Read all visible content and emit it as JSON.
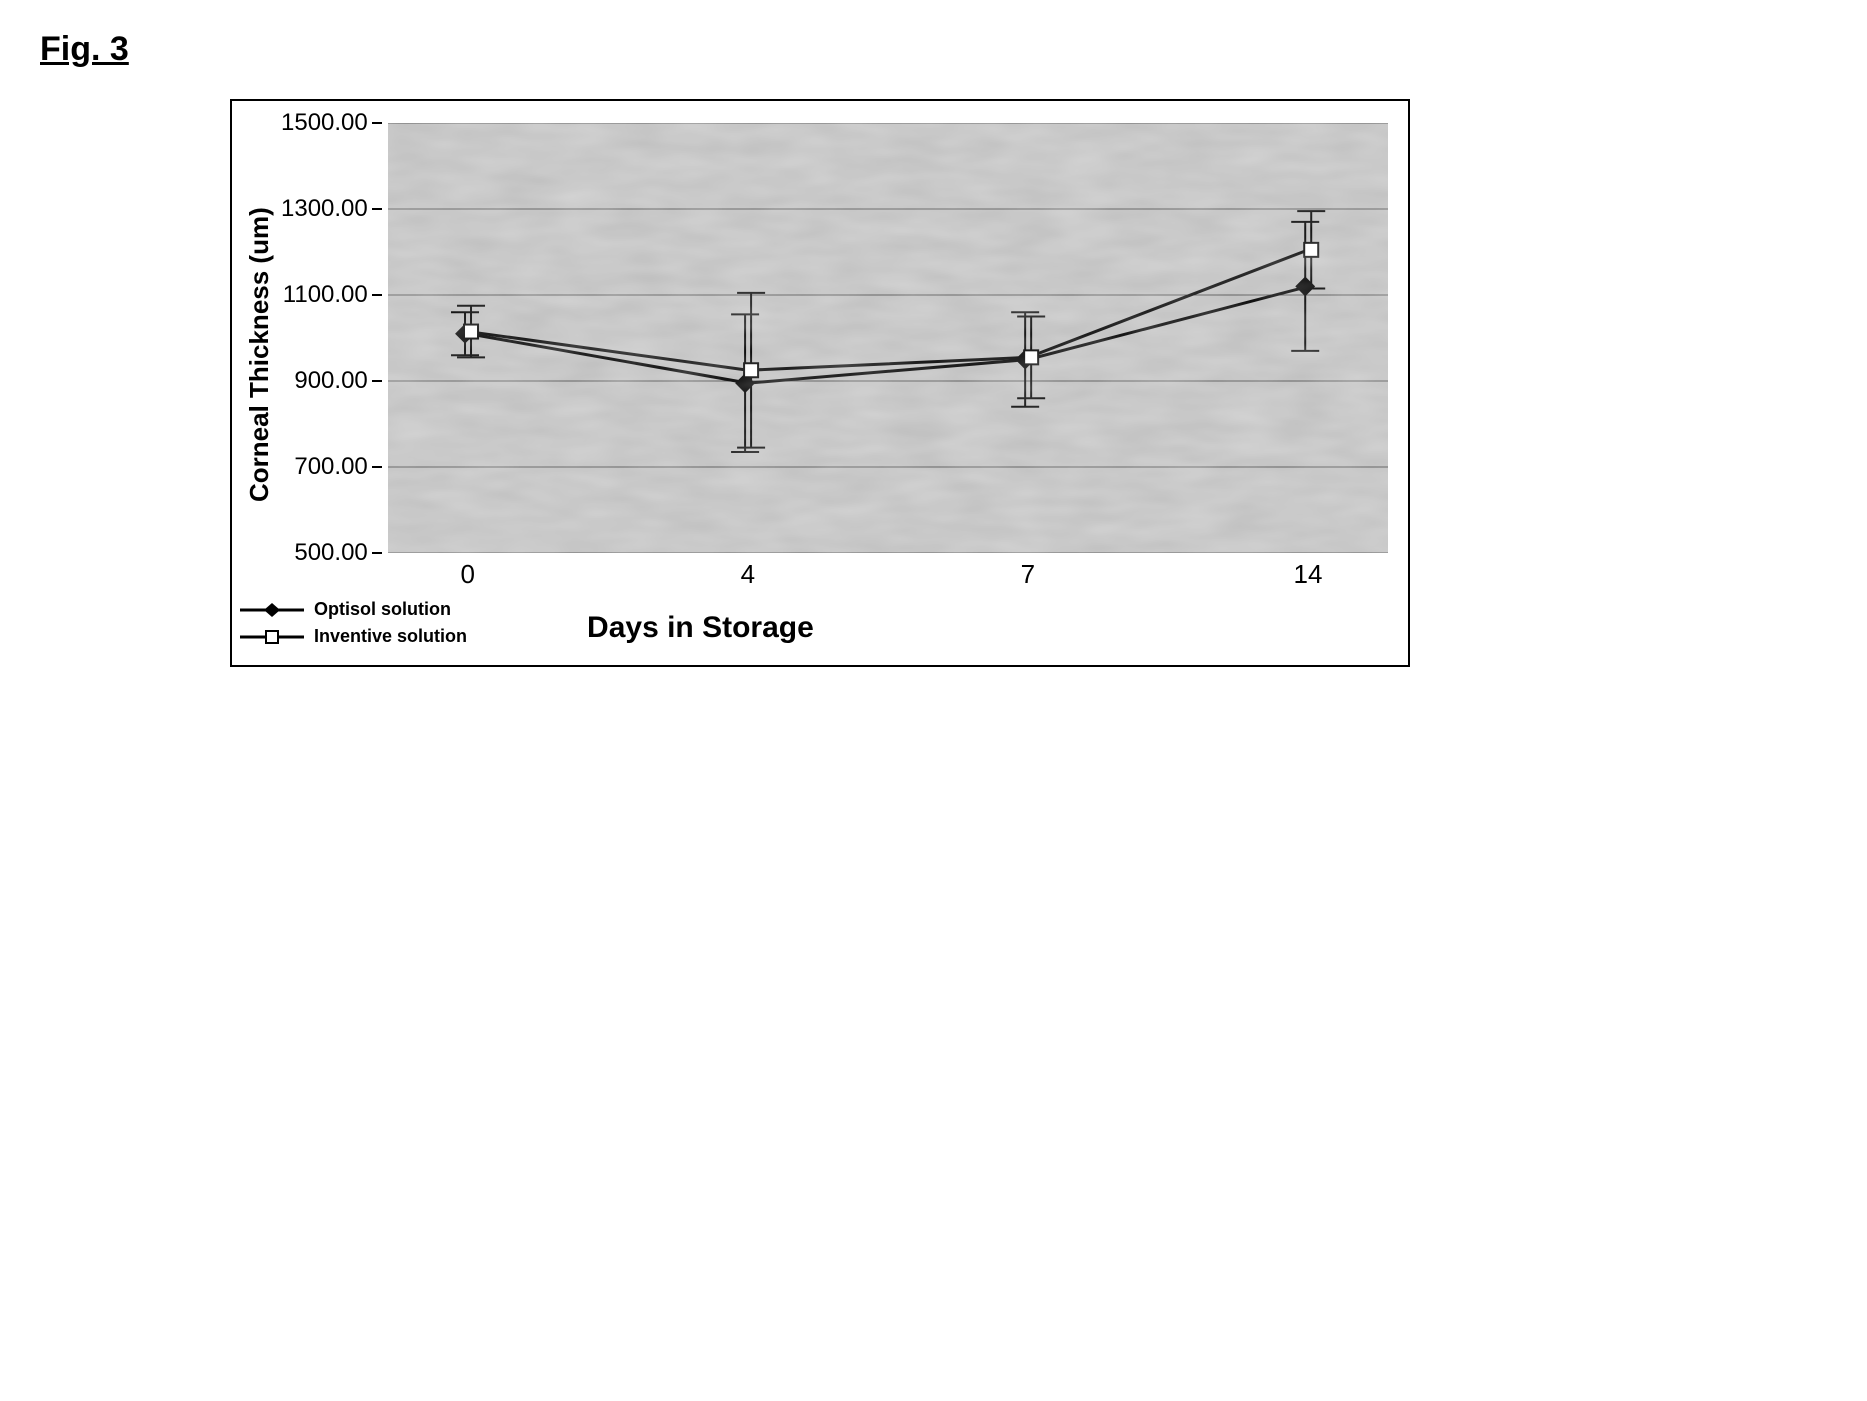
{
  "figure_label": "Fig. 3",
  "chart": {
    "type": "line",
    "background_color": "#bfbfbf",
    "grid_color": "#555555",
    "line_color": "#000000",
    "line_width": 3,
    "ylabel": "Corneal Thickness (um)",
    "xlabel": "Days in Storage",
    "label_fontsize": 28,
    "tick_fontsize": 24,
    "ylim": [
      500,
      1500
    ],
    "ytick_step": 200,
    "yticks": [
      "1500.00",
      "1300.00",
      "1100.00",
      "900.00",
      "700.00",
      "500.00"
    ],
    "x_categories": [
      "0",
      "4",
      "7",
      "14"
    ],
    "x_positions_pct": [
      8,
      36,
      64,
      92
    ],
    "series": [
      {
        "name": "Optisol solution",
        "marker": "diamond",
        "marker_size": 12,
        "marker_fill": "#000000",
        "values": [
          1010,
          895,
          950,
          1120
        ],
        "err": [
          50,
          160,
          110,
          150
        ]
      },
      {
        "name": "Inventive solution",
        "marker": "square",
        "marker_size": 14,
        "marker_fill": "#ffffff",
        "values": [
          1015,
          925,
          955,
          1205
        ],
        "err": [
          60,
          180,
          95,
          90
        ]
      }
    ]
  }
}
